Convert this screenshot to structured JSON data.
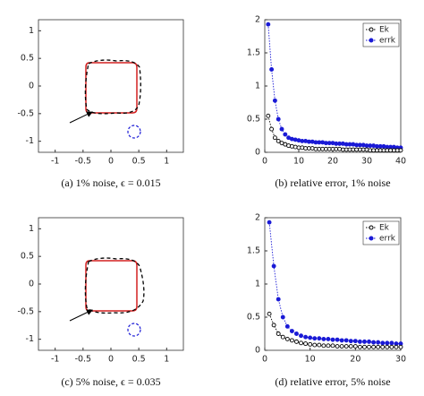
{
  "chart_data": [
    {
      "type": "shape",
      "caption": "(a) 1% noise, ϵ = 0.015",
      "xlim": [
        -1.3,
        1.3
      ],
      "ylim": [
        -1.2,
        1.2
      ],
      "xticks": [
        -1,
        -0.5,
        0,
        0.5,
        1
      ],
      "yticks": [
        -1,
        -0.5,
        0,
        0.5,
        1
      ]
    },
    {
      "type": "line",
      "caption": "(b) relative error, 1% noise",
      "xlim": [
        0,
        40
      ],
      "ylim": [
        0,
        2
      ],
      "xticks": [
        0,
        10,
        20,
        30,
        40
      ],
      "yticks": [
        0,
        0.5,
        1,
        1.5,
        2
      ],
      "legend": "upper right",
      "x": [
        1,
        2,
        3,
        4,
        5,
        6,
        7,
        8,
        9,
        10,
        11,
        12,
        13,
        14,
        15,
        16,
        17,
        18,
        19,
        20,
        21,
        22,
        23,
        24,
        25,
        26,
        27,
        28,
        29,
        30,
        31,
        32,
        33,
        34,
        35,
        36,
        37,
        38,
        39,
        40
      ],
      "series": [
        {
          "name": "Ek",
          "color": "#000000",
          "marker": "open",
          "values": [
            0.55,
            0.35,
            0.22,
            0.17,
            0.14,
            0.12,
            0.1,
            0.09,
            0.08,
            0.07,
            0.07,
            0.06,
            0.06,
            0.06,
            0.05,
            0.05,
            0.05,
            0.05,
            0.05,
            0.05,
            0.05,
            0.05,
            0.04,
            0.04,
            0.04,
            0.04,
            0.04,
            0.04,
            0.04,
            0.04,
            0.03,
            0.03,
            0.03,
            0.03,
            0.03,
            0.03,
            0.03,
            0.03,
            0.03,
            0.03
          ]
        },
        {
          "name": "errk",
          "color": "#1a1ad6",
          "marker": "filled",
          "values": [
            1.93,
            1.25,
            0.78,
            0.5,
            0.35,
            0.27,
            0.22,
            0.2,
            0.19,
            0.18,
            0.17,
            0.17,
            0.16,
            0.16,
            0.15,
            0.15,
            0.15,
            0.14,
            0.14,
            0.14,
            0.13,
            0.13,
            0.13,
            0.12,
            0.12,
            0.12,
            0.11,
            0.11,
            0.11,
            0.1,
            0.1,
            0.1,
            0.09,
            0.09,
            0.09,
            0.08,
            0.08,
            0.08,
            0.07,
            0.07
          ]
        }
      ]
    },
    {
      "type": "shape",
      "caption": "(c) 5% noise, ϵ = 0.035",
      "xlim": [
        -1.3,
        1.3
      ],
      "ylim": [
        -1.2,
        1.2
      ],
      "xticks": [
        -1,
        -0.5,
        0,
        0.5,
        1
      ],
      "yticks": [
        -1,
        -0.5,
        0,
        0.5,
        1
      ]
    },
    {
      "type": "line",
      "caption": "(d) relative error, 5% noise",
      "xlim": [
        0,
        30
      ],
      "ylim": [
        0,
        2
      ],
      "xticks": [
        0,
        10,
        20,
        30
      ],
      "yticks": [
        0,
        0.5,
        1,
        1.5,
        2
      ],
      "legend": "upper right",
      "x": [
        1,
        2,
        3,
        4,
        5,
        6,
        7,
        8,
        9,
        10,
        11,
        12,
        13,
        14,
        15,
        16,
        17,
        18,
        19,
        20,
        21,
        22,
        23,
        24,
        25,
        26,
        27,
        28,
        29,
        30
      ],
      "series": [
        {
          "name": "Ek",
          "color": "#000000",
          "marker": "open",
          "values": [
            0.55,
            0.38,
            0.25,
            0.2,
            0.17,
            0.15,
            0.13,
            0.11,
            0.1,
            0.09,
            0.08,
            0.08,
            0.07,
            0.07,
            0.07,
            0.06,
            0.06,
            0.06,
            0.06,
            0.06,
            0.05,
            0.05,
            0.05,
            0.05,
            0.05,
            0.05,
            0.05,
            0.05,
            0.05,
            0.05
          ]
        },
        {
          "name": "errk",
          "color": "#1a1ad6",
          "marker": "filled",
          "values": [
            1.93,
            1.27,
            0.77,
            0.5,
            0.36,
            0.29,
            0.25,
            0.22,
            0.2,
            0.19,
            0.18,
            0.18,
            0.17,
            0.17,
            0.16,
            0.16,
            0.15,
            0.15,
            0.14,
            0.14,
            0.13,
            0.13,
            0.13,
            0.12,
            0.12,
            0.11,
            0.11,
            0.11,
            0.1,
            0.1
          ]
        }
      ]
    }
  ]
}
